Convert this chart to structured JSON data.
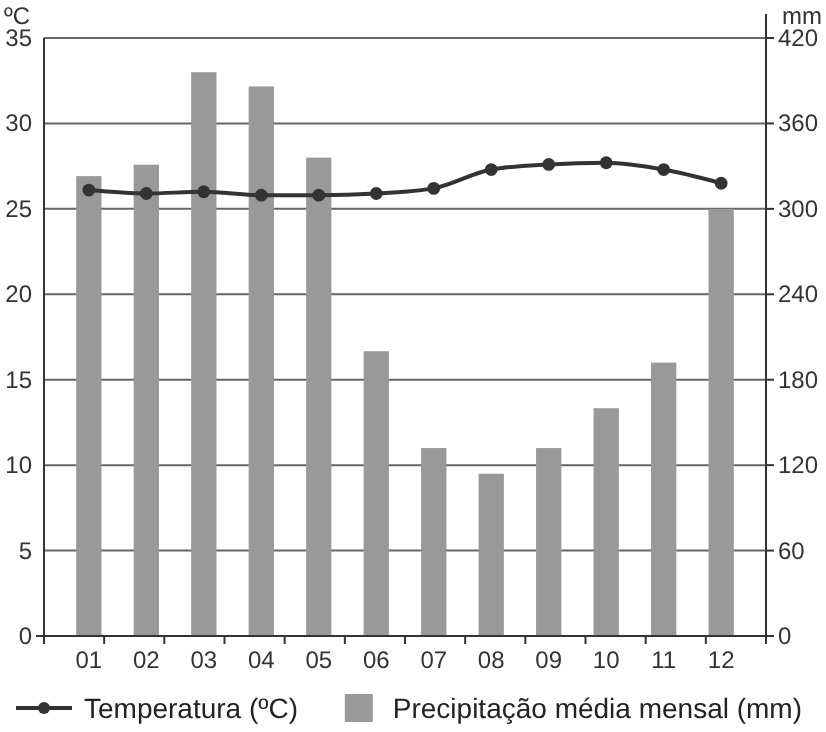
{
  "chart_data": {
    "type": "bar",
    "ylabel": "ºC",
    "y2label": "mm",
    "categories": [
      "01",
      "02",
      "03",
      "04",
      "05",
      "06",
      "07",
      "08",
      "09",
      "10",
      "11",
      "12"
    ],
    "series": [
      {
        "name": "Temperatura (ºC)",
        "type": "line",
        "color": "#333333",
        "marker": "circle",
        "values": [
          26.1,
          25.9,
          26.0,
          25.8,
          25.8,
          25.9,
          26.2,
          27.3,
          27.6,
          27.7,
          27.3,
          26.5
        ]
      },
      {
        "name": "Precipitação média mensal (mm)",
        "axis": "y2",
        "color": "#999999",
        "values": [
          323,
          331,
          396,
          386,
          336,
          200,
          132,
          114,
          132,
          160,
          192,
          300
        ]
      }
    ],
    "ylim": [
      0,
      35
    ],
    "yticks": [
      0,
      5,
      10,
      15,
      20,
      25,
      30,
      35
    ],
    "y2lim": [
      0,
      420
    ],
    "y2ticks": [
      0,
      60,
      120,
      180,
      240,
      300,
      360,
      420
    ],
    "grid": "y",
    "legend": "bottom"
  }
}
